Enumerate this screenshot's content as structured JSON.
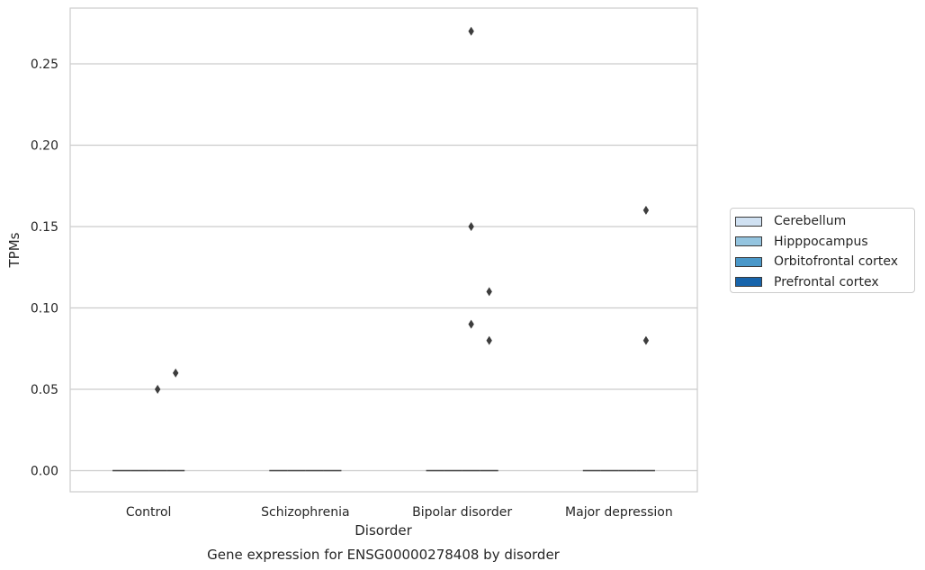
{
  "chart_data": {
    "type": "box",
    "title": "",
    "caption": "Gene expression for ENSG00000278408 by disorder",
    "xlabel": "Disorder",
    "ylabel": "TPMs",
    "ylim": [
      -0.013,
      0.284
    ],
    "yticks": [
      "0.00",
      "0.05",
      "0.10",
      "0.15",
      "0.20",
      "0.25"
    ],
    "categories": [
      "Control",
      "Schizophrenia",
      "Bipolar disorder",
      "Major depression"
    ],
    "grid": "horizontal",
    "legend_position": "right",
    "series": [
      {
        "name": "Cerebellum",
        "color": "#d0e1f2"
      },
      {
        "name": "Hipppocampus",
        "color": "#94c4df"
      },
      {
        "name": "Orbitofrontal cortex",
        "color": "#4a98c9"
      },
      {
        "name": "Prefrontal cortex",
        "color": "#1764ab"
      }
    ],
    "medians": [
      0,
      0,
      0,
      0
    ],
    "outliers": [
      {
        "category": "Control",
        "series": "Orbitofrontal cortex",
        "value": 0.05
      },
      {
        "category": "Control",
        "series": "Prefrontal cortex",
        "value": 0.06
      },
      {
        "category": "Bipolar disorder",
        "series": "Orbitofrontal cortex",
        "value": 0.27
      },
      {
        "category": "Bipolar disorder",
        "series": "Orbitofrontal cortex",
        "value": 0.15
      },
      {
        "category": "Bipolar disorder",
        "series": "Orbitofrontal cortex",
        "value": 0.09
      },
      {
        "category": "Bipolar disorder",
        "series": "Prefrontal cortex",
        "value": 0.08
      },
      {
        "category": "Bipolar disorder",
        "series": "Prefrontal cortex",
        "value": 0.11
      },
      {
        "category": "Major depression",
        "series": "Prefrontal cortex",
        "value": 0.16
      },
      {
        "category": "Major depression",
        "series": "Prefrontal cortex",
        "value": 0.08
      }
    ]
  }
}
